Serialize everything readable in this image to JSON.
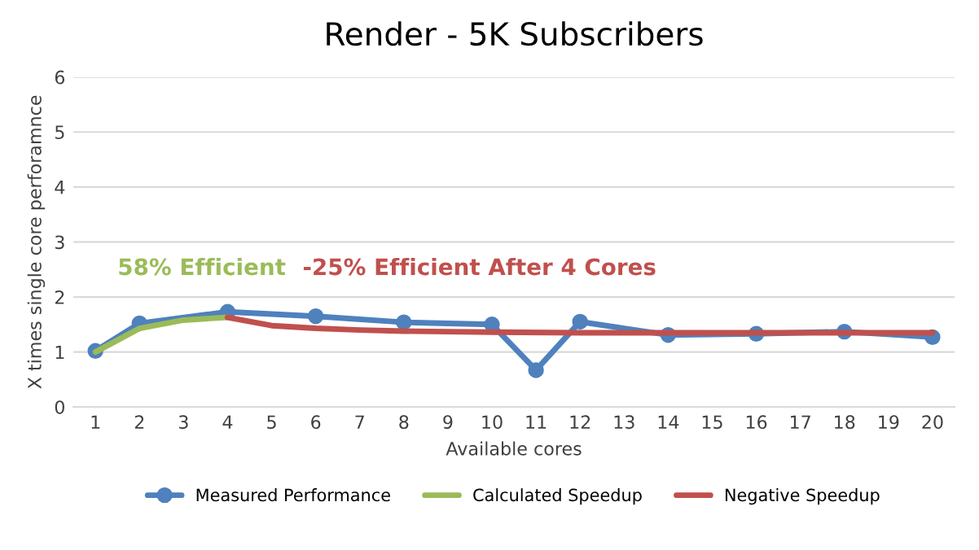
{
  "chart_data": {
    "type": "line",
    "title": "Render - 5K Subscribers",
    "xlabel": "Available cores",
    "ylabel": "X times single core perforamnce",
    "xlim": [
      0.5,
      20.5
    ],
    "xticks": [
      1,
      2,
      3,
      4,
      5,
      6,
      7,
      8,
      9,
      10,
      11,
      12,
      13,
      14,
      15,
      16,
      17,
      18,
      19,
      20
    ],
    "ylim": [
      0,
      6
    ],
    "yticks": [
      0,
      1,
      2,
      3,
      4,
      5,
      6
    ],
    "grid": "y",
    "legend": "bottom",
    "series": [
      {
        "name": "Measured Performance",
        "color": "#4f81bd",
        "marker": "circle",
        "x": [
          1,
          2,
          4,
          6,
          8,
          10,
          11,
          12,
          14,
          16,
          18,
          20
        ],
        "values": [
          1.02,
          1.52,
          1.73,
          1.65,
          1.54,
          1.5,
          0.67,
          1.55,
          1.31,
          1.33,
          1.37,
          1.27
        ]
      },
      {
        "name": "Calculated Speedup",
        "color": "#9bbb59",
        "marker": "none",
        "x": [
          1,
          2,
          3,
          4
        ],
        "values": [
          1.0,
          1.43,
          1.58,
          1.63
        ]
      },
      {
        "name": "Negative Speedup",
        "color": "#c0504d",
        "marker": "none",
        "x": [
          4,
          5,
          6,
          7,
          8,
          9,
          10,
          12,
          14,
          16,
          18,
          20
        ],
        "values": [
          1.63,
          1.48,
          1.43,
          1.4,
          1.38,
          1.37,
          1.36,
          1.35,
          1.35,
          1.35,
          1.35,
          1.35
        ]
      }
    ],
    "annotations": [
      "58% Efficient",
      "-25% Efficient After 4 Cores"
    ]
  }
}
